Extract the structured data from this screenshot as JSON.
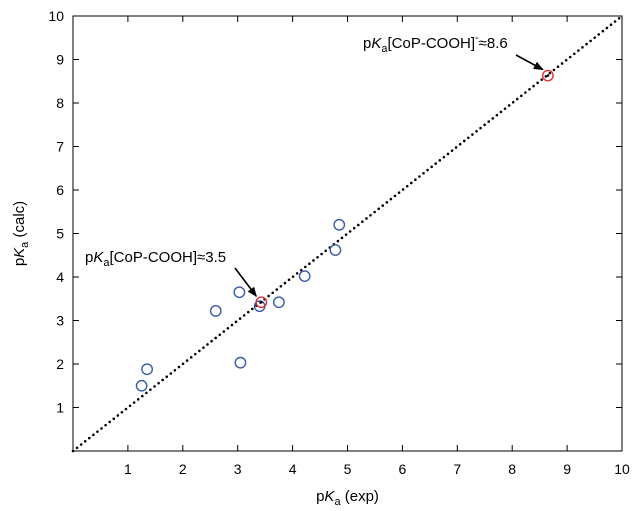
{
  "chart_data": {
    "type": "scatter",
    "title": "",
    "xlabel": {
      "prefix": "p",
      "italic": "K",
      "sub": "a",
      "suffix": " (exp)"
    },
    "ylabel": {
      "prefix": "p",
      "italic": "K",
      "sub": "a",
      "suffix": " (calc)"
    },
    "xlim": [
      0,
      10
    ],
    "ylim": [
      0,
      10
    ],
    "xticks": [
      "1",
      "2",
      "3",
      "4",
      "5",
      "6",
      "7",
      "8",
      "9",
      "10"
    ],
    "yticks": [
      "1",
      "2",
      "3",
      "4",
      "5",
      "6",
      "7",
      "8",
      "9",
      "10"
    ],
    "grid": false,
    "reference_line": {
      "style": "dotted",
      "from": [
        0,
        0
      ],
      "to": [
        10,
        10
      ]
    },
    "series": [
      {
        "color": "#3a5ba8",
        "points": [
          {
            "x": 1.25,
            "y": 1.5
          },
          {
            "x": 1.35,
            "y": 1.88
          },
          {
            "x": 2.6,
            "y": 3.22
          },
          {
            "x": 3.03,
            "y": 3.65
          },
          {
            "x": 3.05,
            "y": 2.03
          },
          {
            "x": 3.4,
            "y": 3.33
          },
          {
            "x": 3.75,
            "y": 3.42
          },
          {
            "x": 4.22,
            "y": 4.02
          },
          {
            "x": 4.78,
            "y": 4.62
          },
          {
            "x": 4.85,
            "y": 5.2
          }
        ]
      },
      {
        "color": "#e03030",
        "points": [
          {
            "x": 3.43,
            "y": 3.42
          },
          {
            "x": 8.65,
            "y": 8.63
          }
        ]
      }
    ],
    "annotations": [
      {
        "prefix": "p",
        "italic": "K",
        "sub": "a",
        "main": "[CoP-COOH]≈3.5",
        "sup": "",
        "tail": "",
        "target": [
          3.43,
          3.42
        ]
      },
      {
        "prefix": "p",
        "italic": "K",
        "sub": "a",
        "main": "[CoP-COOH]",
        "sup": "-",
        "tail": "≈8.6",
        "target": [
          8.65,
          8.63
        ]
      }
    ]
  }
}
